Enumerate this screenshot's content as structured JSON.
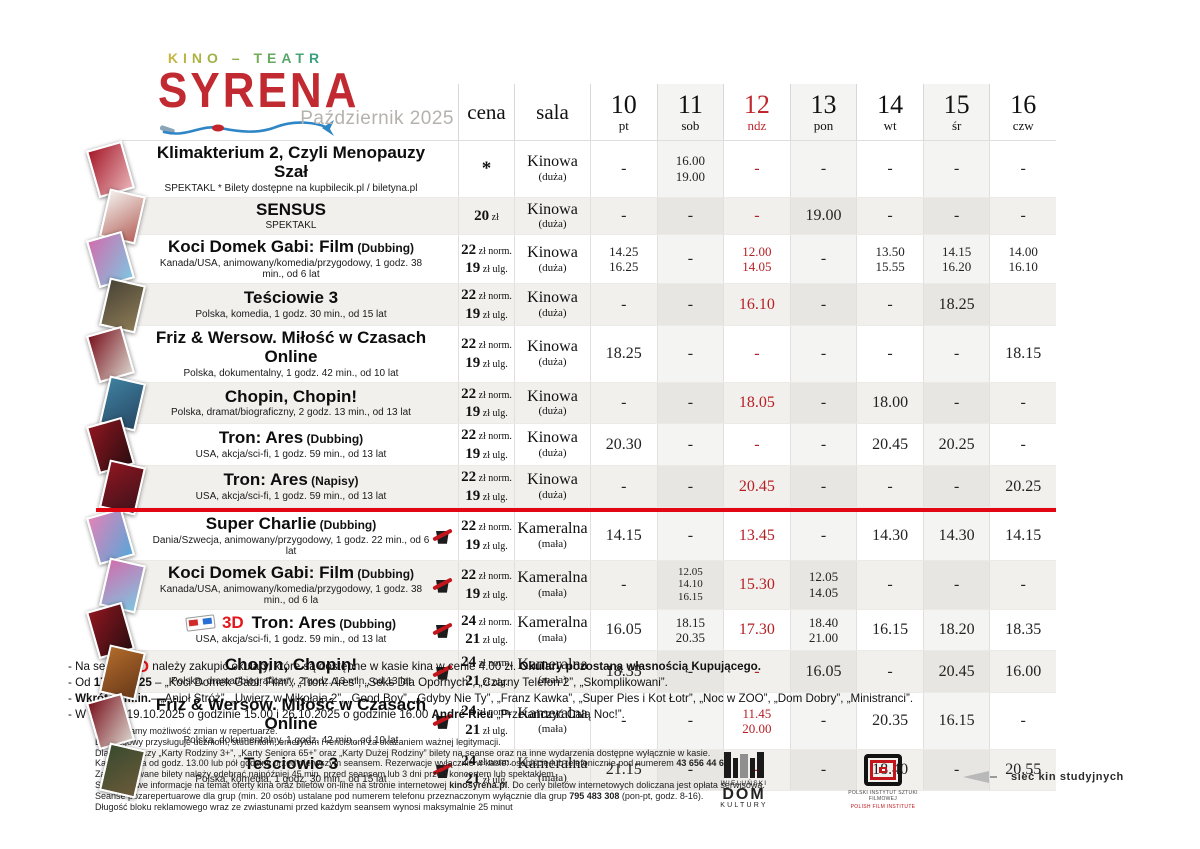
{
  "header": {
    "logo_top": "KINO – TEATR",
    "logo_main": "SYRENA",
    "month": "Październik 2025",
    "col_price": "cena",
    "col_hall": "sala"
  },
  "days": [
    {
      "n": "10",
      "d": "pt"
    },
    {
      "n": "11",
      "d": "sob"
    },
    {
      "n": "12",
      "d": "ndz",
      "red": true
    },
    {
      "n": "13",
      "d": "pon"
    },
    {
      "n": "14",
      "d": "wt"
    },
    {
      "n": "15",
      "d": "śr"
    },
    {
      "n": "16",
      "d": "czw"
    }
  ],
  "schedule": {
    "badge_3d": "3D",
    "price_star": "*",
    "price_labels": {
      "norm": "zł norm.",
      "ulg": "zł ulg.",
      "single_unit": "zł"
    },
    "rows": [
      {
        "title": "Klimakterium 2, Czyli Menopauzy Szał",
        "tag": "",
        "sub": "SPEKTAKL    * Bilety dostępne na kupbilecik.pl  /  biletyna.pl",
        "price": {
          "star": true
        },
        "hall": "Kinowa",
        "hall_size": "(duża)",
        "gift": false,
        "three_d": false,
        "poster": [
          "#a61b2b",
          "#e8b1b6"
        ],
        "times": [
          "-",
          "16.00\n19.00",
          "-",
          "-",
          "-",
          "-",
          "-"
        ]
      },
      {
        "title": "SENSUS",
        "tag": "",
        "sub": "SPEKTAKL",
        "price": {
          "single": "20"
        },
        "hall": "Kinowa",
        "hall_size": "(duża)",
        "gift": false,
        "three_d": false,
        "poster": [
          "#f1eeea",
          "#b7645d"
        ],
        "times": [
          "-",
          "-",
          "-",
          "19.00",
          "-",
          "-",
          "-"
        ]
      },
      {
        "title": "Koci Domek Gabi: Film",
        "tag": "(Dubbing)",
        "sub": "Kanada/USA, animowany/komedia/przygodowy, 1 godz. 38 min., od 6 lat",
        "price": {
          "norm": "22",
          "ulg": "19"
        },
        "hall": "Kinowa",
        "hall_size": "(duża)",
        "gift": false,
        "three_d": false,
        "poster": [
          "#d06fae",
          "#7fc4e0"
        ],
        "times": [
          "14.25\n16.25",
          "-",
          "12.00\n14.05",
          "-",
          "13.50\n15.55",
          "14.15\n16.20",
          "14.00\n16.10"
        ]
      },
      {
        "title": "Teściowie 3",
        "tag": "",
        "sub": "Polska, komedia, 1 godz. 30 min., od 15 lat",
        "price": {
          "norm": "22",
          "ulg": "19"
        },
        "hall": "Kinowa",
        "hall_size": "(duża)",
        "gift": false,
        "three_d": false,
        "poster": [
          "#4a4436",
          "#8b7a55"
        ],
        "times": [
          "-",
          "-",
          "16.10",
          "-",
          "-",
          "18.25",
          ""
        ]
      },
      {
        "title": "Friz & Wersow. Miłość w Czasach Online",
        "tag": "",
        "sub": "Polska, dokumentalny, 1 godz. 42 min., od 10 lat",
        "price": {
          "norm": "22",
          "ulg": "19"
        },
        "hall": "Kinowa",
        "hall_size": "(duża)",
        "gift": false,
        "three_d": false,
        "poster": [
          "#7a1420",
          "#d8d0c8"
        ],
        "times": [
          "18.25",
          "-",
          "-",
          "-",
          "-",
          "-",
          "18.15"
        ]
      },
      {
        "title": "Chopin, Chopin!",
        "tag": "",
        "sub": "Polska, dramat/biograficzny, 2 godz. 13 min., od 13 lat",
        "price": {
          "norm": "22",
          "ulg": "19"
        },
        "hall": "Kinowa",
        "hall_size": "(duża)",
        "gift": false,
        "three_d": false,
        "poster": [
          "#3f7f9f",
          "#274a66"
        ],
        "times": [
          "-",
          "-",
          "18.05",
          "-",
          "18.00",
          "-",
          "-"
        ]
      },
      {
        "title": "Tron: Ares",
        "tag": "(Dubbing)",
        "sub": "USA, akcja/sci-fi, 1 godz. 59 min., od 13 lat",
        "price": {
          "norm": "22",
          "ulg": "19"
        },
        "hall": "Kinowa",
        "hall_size": "(duża)",
        "gift": false,
        "three_d": false,
        "poster": [
          "#8d1620",
          "#2b0d10"
        ],
        "times": [
          "20.30",
          "-",
          "-",
          "-",
          "20.45",
          "20.25",
          "-"
        ]
      },
      {
        "title": "Tron: Ares",
        "tag": "(Napisy)",
        "sub": "USA, akcja/sci-fi, 1 godz. 59 min., od 13 lat",
        "price": {
          "norm": "22",
          "ulg": "19"
        },
        "hall": "Kinowa",
        "hall_size": "(duża)",
        "gift": false,
        "three_d": false,
        "poster": [
          "#8d1620",
          "#40121a"
        ],
        "separator_after": true,
        "times": [
          "-",
          "-",
          "20.45",
          "-",
          "-",
          "-",
          "20.25"
        ]
      },
      {
        "title": "Super Charlie",
        "tag": "(Dubbing)",
        "sub": "Dania/Szwecja, animowany/przygodowy, 1 godz. 22 min., od 6 lat",
        "price": {
          "norm": "22",
          "ulg": "19"
        },
        "hall": "Kameralna",
        "hall_size": "(mała)",
        "gift": true,
        "three_d": false,
        "poster": [
          "#e083b8",
          "#5aa6d8"
        ],
        "times": [
          "14.15",
          "-",
          "13.45",
          "-",
          "14.30",
          "14.30",
          "14.15"
        ]
      },
      {
        "title": "Koci Domek Gabi: Film",
        "tag": "(Dubbing)",
        "sub": "Kanada/USA, animowany/komedia/przygodowy, 1 godz. 38 min., od 6 la",
        "price": {
          "norm": "22",
          "ulg": "19"
        },
        "hall": "Kameralna",
        "hall_size": "(mała)",
        "gift": true,
        "three_d": false,
        "poster": [
          "#d06fae",
          "#7fc4e0"
        ],
        "times": [
          "-",
          "12.05\n14.10\n16.15",
          "15.30",
          "12.05\n14.05",
          "-",
          "-",
          "-"
        ]
      },
      {
        "title": "Tron: Ares",
        "tag": "(Dubbing)",
        "sub": "USA, akcja/sci-fi, 1 godz. 59 min., od 13 lat",
        "price": {
          "norm": "24",
          "ulg": "21"
        },
        "hall": "Kameralna",
        "hall_size": "(mała)",
        "gift": true,
        "three_d": true,
        "poster": [
          "#8d1620",
          "#2b0d10"
        ],
        "times": [
          "16.05",
          "18.15\n20.35",
          "17.30",
          "18.40\n21.00",
          "16.15",
          "18.20",
          "18.35"
        ]
      },
      {
        "title": "Chopin, Chopin!",
        "tag": "",
        "sub": "Polska, dramat/biograficzny, 2 godz. 13 min., od 13 lat",
        "price": {
          "norm": "24",
          "ulg": "21"
        },
        "hall": "Kameralna",
        "hall_size": "(mała)",
        "gift": true,
        "three_d": false,
        "poster": [
          "#b06a2a",
          "#6a3a1a"
        ],
        "times": [
          "18.35",
          "-",
          "-",
          "16.05",
          "-",
          "20.45",
          "16.00"
        ]
      },
      {
        "title": "Friz & Wersow. Miłość w Czasach Online",
        "tag": "",
        "sub": "Polska, dokumentalny, 1 godz. 42 min., od 10 lat",
        "price": {
          "norm": "24",
          "ulg": "21"
        },
        "hall": "Kameralna",
        "hall_size": "(mała)",
        "gift": true,
        "three_d": false,
        "poster": [
          "#7a1420",
          "#d8d0c8"
        ],
        "times": [
          "-",
          "-",
          "11.45\n20.00",
          "-",
          "20.35",
          "16.15",
          "-"
        ]
      },
      {
        "title": "Teściowie 3",
        "tag": "",
        "sub": "Polska, komedia, 1 godz. 30 min., od 15 lat",
        "price": {
          "norm": "24",
          "ulg": "21"
        },
        "hall": "Kameralna",
        "hall_size": "(mała)",
        "gift": true,
        "three_d": false,
        "poster": [
          "#3a4a2e",
          "#6a5a3a"
        ],
        "times": [
          "21.15",
          "-",
          "-",
          "-",
          "18.40",
          "-",
          "20.55"
        ]
      }
    ]
  },
  "notes": [
    [
      {
        "t": "- Na seans "
      },
      {
        "t": "3D",
        "redbig": true
      },
      {
        "t": " należy zakupić okulary, które są dostępne w kasie kina w cenie 4.00 zł. "
      },
      {
        "t": "Okulary pozostaną własnością Kupującego.",
        "b": true
      }
    ],
    [
      {
        "t": "- Od "
      },
      {
        "t": "17.10.2025",
        "b": true
      },
      {
        "t": " – „Koci Domek Gabi: Film”, „Tron: Ares”, „Seks Dla Opornych”, „Czarny Telefon 2”, „Skomplikowani”."
      }
    ],
    [
      {
        "t": "- "
      },
      {
        "t": "Wkrótce m.in.",
        "b": true
      },
      {
        "t": "– „Anioł Stróż”, „Uwierz w Mikołaja 2”, „Good Boy”, „Gdyby Nie Ty”, „Franz Kawka”, „Super Pies i Kot Łotr”, „Noc w ZOO”, „Dom Dobry”, „Ministranci”."
      }
    ],
    [
      {
        "t": "- W dniach 19.10.2025 o godzinie 15.00 i 26.10.2025 o godzinie 16.00 "
      },
      {
        "t": "André Rieu",
        "b": true
      },
      {
        "t": " „Przetańczyć Całą Noc!”."
      }
    ]
  ],
  "fine_print": [
    [
      {
        "t": "Zastrzegamy możliwość zmian w repertuarze."
      }
    ],
    [
      {
        "t": "Bilet ulgowy przysługuje uczniom, studentom, emerytom i rencistom za okazaniem ważnej legitymacji."
      }
    ],
    [
      {
        "t": "Dla posiadaczy „Karty Rodziny 3+”, „Karty Seniora 65+” oraz „Karty Dużej Rodziny” bilety na seanse oraz na inne wydarzenia dostępne wyłącznie w kasie."
      }
    ],
    [
      {
        "t": "Kasa czynna od godz. 13.00 lub pół godziny przed pierwszym seansem. Rezerwacje wyłącznie w kasie: osobiście lub telefonicznie pod numerem "
      },
      {
        "t": "43 656 44 66",
        "b": true
      },
      {
        "t": "."
      }
    ],
    [
      {
        "t": "Zarezerwowane bilety należy odebrać najpóźniej 45 min. przed seansem lub 3 dni przed koncertem lub spektaklem."
      }
    ],
    [
      {
        "t": "Szczegółowe informacje na temat oferty kina oraz biletów on-line na stronie internetowej "
      },
      {
        "t": "kinosyrena.pl",
        "b": true
      },
      {
        "t": ". Do ceny biletów internetowych doliczana jest opłata serwisowa."
      }
    ],
    [
      {
        "t": "Seanse pozarepertuarowe dla grup (min. 20 osób) ustalane pod numerem telefonu przeznaczonym wyłącznie dla grup "
      },
      {
        "t": "795 483 308",
        "b": true
      },
      {
        "t": " (pon-pt, godz. 8-16)."
      }
    ],
    [
      {
        "t": "Długość bloku reklamowego wraz ze zwiastunami przed każdym seansem wynosi maksymalnie 25 minut"
      }
    ]
  ],
  "logos": {
    "wdk": {
      "line1": "WIELUŃSKI",
      "line2": "DOM",
      "line3": "KULTURY"
    },
    "pisf": {
      "line1": "POLSKI INSTYTUT SZTUKI FILMOWEJ",
      "line2": "POLISH FILM INSTITUTE"
    },
    "skn": {
      "label": "sieć kin studyjnych"
    }
  },
  "colors": {
    "accent_red": "#c1272d",
    "time_red": "#b52025",
    "separator_red": "#e30613",
    "logo_red": "#c22a31",
    "logo_blue": "#2e86c6",
    "month_gray": "#b5b2ad"
  }
}
